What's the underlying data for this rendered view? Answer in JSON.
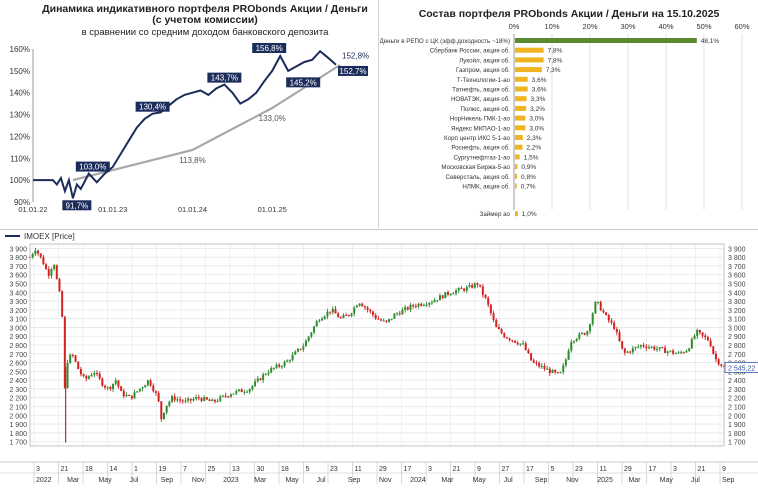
{
  "chart_data": [
    {
      "type": "line",
      "title_line1": "Динамика индикативного  портфеля PRObonds Акции / Деньги",
      "title_line2": "(с учетом комиссии)",
      "subtitle": "в сравнении со средним доходом банковского депозита",
      "y_ticks": [
        "160%",
        "150%",
        "140%",
        "130%",
        "120%",
        "110%",
        "100%",
        "90%"
      ],
      "x_ticks": [
        "01.01.22",
        "01.01.23",
        "01.01.24",
        "01.01.25"
      ],
      "ylim": [
        90,
        160
      ],
      "xlim": [
        2022.0,
        2025.85
      ],
      "series": [
        {
          "name": "portfolio",
          "color": "#1c2d5c",
          "points": [
            [
              2022.0,
              100
            ],
            [
              2022.25,
              100
            ],
            [
              2022.3,
              98
            ],
            [
              2022.35,
              101
            ],
            [
              2022.4,
              95
            ],
            [
              2022.45,
              100
            ],
            [
              2022.5,
              91.7
            ],
            [
              2022.55,
              98
            ],
            [
              2022.6,
              96
            ],
            [
              2022.7,
              103
            ],
            [
              2022.8,
              99
            ],
            [
              2022.9,
              103
            ],
            [
              2023.0,
              106
            ],
            [
              2023.1,
              112
            ],
            [
              2023.2,
              118
            ],
            [
              2023.3,
              124
            ],
            [
              2023.4,
              128
            ],
            [
              2023.5,
              130.4
            ],
            [
              2023.6,
              131
            ],
            [
              2023.7,
              134
            ],
            [
              2023.8,
              137
            ],
            [
              2023.9,
              139
            ],
            [
              2024.0,
              140
            ],
            [
              2024.1,
              141
            ],
            [
              2024.2,
              139
            ],
            [
              2024.3,
              142
            ],
            [
              2024.4,
              143.7
            ],
            [
              2024.5,
              140
            ],
            [
              2024.6,
              135
            ],
            [
              2024.7,
              137
            ],
            [
              2024.8,
              140
            ],
            [
              2024.9,
              145.2
            ],
            [
              2025.0,
              150
            ],
            [
              2025.1,
              156.8
            ],
            [
              2025.2,
              150
            ],
            [
              2025.3,
              152
            ],
            [
              2025.4,
              154
            ],
            [
              2025.5,
              155
            ],
            [
              2025.6,
              159
            ],
            [
              2025.7,
              156
            ],
            [
              2025.8,
              152.8
            ]
          ],
          "labels": [
            {
              "x": 2022.55,
              "y": 91.7,
              "text": "91,7%"
            },
            {
              "x": 2022.75,
              "y": 103,
              "text": "103,0%"
            },
            {
              "x": 2023.5,
              "y": 130.4,
              "text": "130,4%"
            },
            {
              "x": 2024.4,
              "y": 143.7,
              "text": "143,7%"
            },
            {
              "x": 2025.1,
              "y": 156.8,
              "text": "156,8%"
            },
            {
              "x": 2025.15,
              "y": 145.2,
              "text": "145,2%"
            },
            {
              "x": 2025.8,
              "y": 152.8,
              "text": "152,8%"
            }
          ]
        },
        {
          "name": "deposit",
          "color": "#a8a8a8",
          "points": [
            [
              2022.5,
              100
            ],
            [
              2024.0,
              113.8
            ],
            [
              2025.0,
              133.0
            ],
            [
              2025.85,
              152.7
            ]
          ],
          "labels": [
            {
              "x": 2024.0,
              "y": 113.8,
              "text": "113,8%"
            },
            {
              "x": 2025.0,
              "y": 133.0,
              "text": "133,0%"
            },
            {
              "x": 2025.85,
              "y": 152.7,
              "text": "152,7%"
            }
          ]
        }
      ]
    },
    {
      "type": "bar",
      "orientation": "horizontal",
      "title": "Состав портфеля PRObonds Акции / Деньги на 15.10.2025",
      "x_ticks": [
        "0%",
        "10%",
        "20%",
        "30%",
        "40%",
        "50%",
        "60%"
      ],
      "xlim": [
        0,
        60
      ],
      "categories": [
        "Деньги в РЕПО с ЦК (эфф.доходность ~18%)",
        "Сбербанк России, акция об.",
        "Лукойл, акция об.",
        "Газпром, акция об.",
        "Т-Технологии-1-ао",
        "Татнефть, акция об.",
        "НОВАТЭК, акция об.",
        "Полюс, акция об.",
        "НорНикель ГМК-1-ао",
        "Яндекс МКПАО-1-ао",
        "Корп центр ИКС 5-1-ао",
        "Роснефть, акция об.",
        "Сургутнефтгаз-1-ао",
        "Московская Биржа-5-ао",
        "Северсталь, акция об.",
        "НЛМК, акция об.",
        "Займер ао"
      ],
      "values": [
        48.1,
        7.8,
        7.8,
        7.3,
        3.6,
        3.6,
        3.3,
        3.2,
        3.0,
        3.0,
        2.3,
        2.2,
        1.5,
        0.9,
        0.8,
        0.7,
        1.0
      ],
      "value_labels": [
        "48,1%",
        "7,8%",
        "7,8%",
        "7,3%",
        "3,6%",
        "3,6%",
        "3,3%",
        "3,2%",
        "3,0%",
        "3,0%",
        "2,3%",
        "2,2%",
        "1,5%",
        "0,9%",
        "0,8%",
        "0,7%",
        "1,0%"
      ],
      "colors": {
        "first": "#5a8a2e",
        "rest": "#f0b41e"
      }
    },
    {
      "type": "candlestick",
      "legend": "IMOEX [Price]",
      "y_ticks": [
        "3 900",
        "3 800",
        "3 700",
        "3 600",
        "3 500",
        "3 400",
        "3 300",
        "3 200",
        "3 100",
        "3 000",
        "2 900",
        "2 800",
        "2 700",
        "2 600",
        "2 500",
        "2 400",
        "2 300",
        "2 200",
        "2 100",
        "2 000",
        "1 900",
        "1 800",
        "1 700"
      ],
      "ylim": [
        1650,
        3950
      ],
      "last_price": "2 545,22",
      "last_value": 2545.22,
      "x_ticks_top": [
        "3",
        "21",
        "18",
        "14",
        "1",
        "19",
        "7",
        "25",
        "13",
        "30",
        "18",
        "5",
        "23",
        "11",
        "29",
        "17",
        "3",
        "21",
        "9",
        "27",
        "17",
        "5",
        "23",
        "11",
        "29",
        "17",
        "3",
        "21",
        "9"
      ],
      "x_ticks_bottom": [
        "2022",
        "Mar",
        "May",
        "Jul",
        "Sep",
        "Nov",
        "2023",
        "Mar",
        "May",
        "Jul",
        "Sep",
        "Nov",
        "2024",
        "Mar",
        "May",
        "Jul",
        "Sep",
        "Nov",
        "2025",
        "Mar",
        "May",
        "Jul",
        "Sep"
      ],
      "xlim": [
        2022.0,
        2025.8
      ],
      "path": [
        [
          2022.0,
          3800
        ],
        [
          2022.03,
          3900
        ],
        [
          2022.07,
          3750
        ],
        [
          2022.1,
          3600
        ],
        [
          2022.13,
          3750
        ],
        [
          2022.15,
          3500
        ],
        [
          2022.17,
          3300
        ],
        [
          2022.18,
          3000
        ],
        [
          2022.19,
          2400
        ],
        [
          2022.195,
          1700
        ],
        [
          2022.2,
          2600
        ],
        [
          2022.23,
          2700
        ],
        [
          2022.27,
          2500
        ],
        [
          2022.3,
          2400
        ],
        [
          2022.35,
          2500
        ],
        [
          2022.4,
          2350
        ],
        [
          2022.43,
          2300
        ],
        [
          2022.47,
          2400
        ],
        [
          2022.5,
          2250
        ],
        [
          2022.55,
          2200
        ],
        [
          2022.6,
          2300
        ],
        [
          2022.65,
          2400
        ],
        [
          2022.7,
          2200
        ],
        [
          2022.72,
          1950
        ],
        [
          2022.74,
          2100
        ],
        [
          2022.78,
          2200
        ],
        [
          2022.85,
          2150
        ],
        [
          2022.92,
          2200
        ],
        [
          2023.0,
          2150
        ],
        [
          2023.1,
          2250
        ],
        [
          2023.2,
          2300
        ],
        [
          2023.3,
          2500
        ],
        [
          2023.4,
          2600
        ],
        [
          2023.5,
          2800
        ],
        [
          2023.58,
          3100
        ],
        [
          2023.65,
          3200
        ],
        [
          2023.7,
          3100
        ],
        [
          2023.75,
          3150
        ],
        [
          2023.8,
          3300
        ],
        [
          2023.85,
          3200
        ],
        [
          2023.9,
          3100
        ],
        [
          2023.95,
          3050
        ],
        [
          2024.0,
          3150
        ],
        [
          2024.1,
          3250
        ],
        [
          2024.2,
          3300
        ],
        [
          2024.3,
          3400
        ],
        [
          2024.4,
          3450
        ],
        [
          2024.45,
          3500
        ],
        [
          2024.5,
          3300
        ],
        [
          2024.55,
          3000
        ],
        [
          2024.6,
          2900
        ],
        [
          2024.65,
          2850
        ],
        [
          2024.7,
          2800
        ],
        [
          2024.75,
          2600
        ],
        [
          2024.8,
          2550
        ],
        [
          2024.85,
          2500
        ],
        [
          2024.9,
          2450
        ],
        [
          2024.93,
          2600
        ],
        [
          2024.96,
          2850
        ],
        [
          2025.0,
          2900
        ],
        [
          2025.05,
          2950
        ],
        [
          2025.1,
          3300
        ],
        [
          2025.13,
          3200
        ],
        [
          2025.16,
          3100
        ],
        [
          2025.2,
          3000
        ],
        [
          2025.25,
          2700
        ],
        [
          2025.3,
          2750
        ],
        [
          2025.35,
          2800
        ],
        [
          2025.45,
          2750
        ],
        [
          2025.55,
          2700
        ],
        [
          2025.6,
          2750
        ],
        [
          2025.65,
          2950
        ],
        [
          2025.68,
          2900
        ],
        [
          2025.72,
          2850
        ],
        [
          2025.75,
          2650
        ],
        [
          2025.8,
          2545
        ]
      ]
    }
  ]
}
